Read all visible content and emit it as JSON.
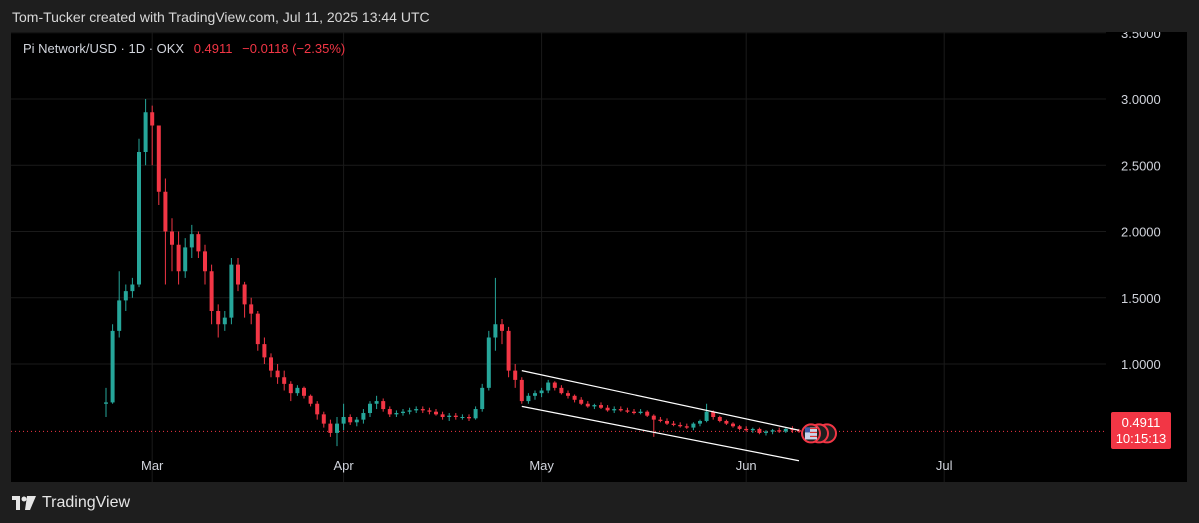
{
  "header": {
    "attribution": "Tom-Tucker created with TradingView.com, Jul 11, 2025 13:44 UTC"
  },
  "legend": {
    "symbol": "Pi Network/USD · 1D · OKX",
    "last_price": "0.4911",
    "change": "−0.0118 (−2.35%)"
  },
  "price_tag": {
    "price": "0.4911",
    "countdown": "10:15:13"
  },
  "footer": {
    "brand": "TradingView"
  },
  "colors": {
    "up": "#26a69a",
    "down": "#f23645",
    "background": "#000000",
    "grid": "#1a1a1a",
    "trendline": "#ffffff"
  },
  "chart_data": {
    "type": "candlestick",
    "symbol": "Pi Network/USD",
    "interval": "1D",
    "exchange": "OKX",
    "y_ticks": [
      3.5,
      3.0,
      2.5,
      2.0,
      1.5,
      1.0
    ],
    "y_tick_labels": [
      "3.5000",
      "3.0000",
      "2.5000",
      "2.0000",
      "1.5000",
      "1.0000"
    ],
    "ylim": [
      0.1,
      3.5
    ],
    "x_tick_labels": [
      {
        "label": "Mar",
        "day": 7
      },
      {
        "label": "Apr",
        "day": 36
      },
      {
        "label": "May",
        "day": 66
      },
      {
        "label": "Jun",
        "day": 97
      },
      {
        "label": "Jul",
        "day": 127
      }
    ],
    "last_value": 0.4911,
    "candles": [
      [
        0,
        0.7,
        0.82,
        0.6,
        0.71
      ],
      [
        1,
        0.71,
        1.3,
        0.7,
        1.25
      ],
      [
        2,
        1.25,
        1.7,
        1.2,
        1.48
      ],
      [
        3,
        1.48,
        1.6,
        1.4,
        1.55
      ],
      [
        4,
        1.55,
        1.65,
        1.5,
        1.6
      ],
      [
        5,
        1.6,
        2.7,
        1.58,
        2.6
      ],
      [
        6,
        2.6,
        3.0,
        2.5,
        2.9
      ],
      [
        7,
        2.9,
        2.95,
        2.5,
        2.8
      ],
      [
        8,
        2.8,
        2.8,
        2.2,
        2.3
      ],
      [
        9,
        2.3,
        2.4,
        1.6,
        2.0
      ],
      [
        10,
        2.0,
        2.1,
        1.7,
        1.9
      ],
      [
        11,
        1.9,
        2.0,
        1.6,
        1.7
      ],
      [
        12,
        1.7,
        1.95,
        1.65,
        1.88
      ],
      [
        13,
        1.88,
        2.05,
        1.8,
        1.98
      ],
      [
        14,
        1.98,
        2.0,
        1.8,
        1.85
      ],
      [
        15,
        1.85,
        1.9,
        1.6,
        1.7
      ],
      [
        16,
        1.7,
        1.75,
        1.3,
        1.4
      ],
      [
        17,
        1.4,
        1.45,
        1.2,
        1.3
      ],
      [
        18,
        1.3,
        1.4,
        1.25,
        1.35
      ],
      [
        19,
        1.35,
        1.8,
        1.3,
        1.75
      ],
      [
        20,
        1.75,
        1.8,
        1.55,
        1.6
      ],
      [
        21,
        1.6,
        1.62,
        1.35,
        1.45
      ],
      [
        22,
        1.45,
        1.5,
        1.3,
        1.38
      ],
      [
        23,
        1.38,
        1.4,
        1.1,
        1.15
      ],
      [
        24,
        1.15,
        1.2,
        1.0,
        1.05
      ],
      [
        25,
        1.05,
        1.08,
        0.9,
        0.95
      ],
      [
        26,
        0.95,
        1.0,
        0.85,
        0.9
      ],
      [
        27,
        0.9,
        0.95,
        0.8,
        0.85
      ],
      [
        28,
        0.85,
        0.87,
        0.72,
        0.78
      ],
      [
        29,
        0.78,
        0.84,
        0.76,
        0.82
      ],
      [
        30,
        0.82,
        0.83,
        0.74,
        0.76
      ],
      [
        31,
        0.76,
        0.77,
        0.68,
        0.7
      ],
      [
        32,
        0.7,
        0.72,
        0.58,
        0.62
      ],
      [
        33,
        0.62,
        0.64,
        0.52,
        0.55
      ],
      [
        34,
        0.55,
        0.58,
        0.45,
        0.48
      ],
      [
        35,
        0.48,
        0.6,
        0.38,
        0.55
      ],
      [
        36,
        0.55,
        0.7,
        0.5,
        0.6
      ],
      [
        37,
        0.6,
        0.62,
        0.54,
        0.56
      ],
      [
        38,
        0.56,
        0.6,
        0.53,
        0.58
      ],
      [
        39,
        0.58,
        0.66,
        0.55,
        0.63
      ],
      [
        40,
        0.63,
        0.72,
        0.6,
        0.7
      ],
      [
        41,
        0.7,
        0.76,
        0.66,
        0.72
      ],
      [
        42,
        0.72,
        0.74,
        0.64,
        0.66
      ],
      [
        43,
        0.66,
        0.68,
        0.6,
        0.62
      ],
      [
        44,
        0.62,
        0.65,
        0.6,
        0.63
      ],
      [
        45,
        0.63,
        0.66,
        0.61,
        0.64
      ],
      [
        46,
        0.64,
        0.67,
        0.62,
        0.65
      ],
      [
        47,
        0.65,
        0.68,
        0.63,
        0.66
      ],
      [
        48,
        0.66,
        0.68,
        0.63,
        0.65
      ],
      [
        49,
        0.65,
        0.67,
        0.62,
        0.64
      ],
      [
        50,
        0.64,
        0.66,
        0.61,
        0.62
      ],
      [
        51,
        0.62,
        0.64,
        0.58,
        0.6
      ],
      [
        52,
        0.6,
        0.63,
        0.57,
        0.61
      ],
      [
        53,
        0.61,
        0.63,
        0.58,
        0.6
      ],
      [
        54,
        0.6,
        0.62,
        0.58,
        0.6
      ],
      [
        55,
        0.6,
        0.62,
        0.57,
        0.59
      ],
      [
        56,
        0.59,
        0.68,
        0.58,
        0.66
      ],
      [
        57,
        0.66,
        0.85,
        0.64,
        0.82
      ],
      [
        58,
        0.82,
        1.25,
        0.8,
        1.2
      ],
      [
        59,
        1.2,
        1.65,
        1.1,
        1.3
      ],
      [
        60,
        1.3,
        1.34,
        1.15,
        1.25
      ],
      [
        61,
        1.25,
        1.28,
        0.9,
        0.95
      ],
      [
        62,
        0.95,
        1.0,
        0.82,
        0.88
      ],
      [
        63,
        0.88,
        0.9,
        0.7,
        0.72
      ],
      [
        64,
        0.72,
        0.78,
        0.7,
        0.76
      ],
      [
        65,
        0.76,
        0.8,
        0.73,
        0.78
      ],
      [
        66,
        0.78,
        0.82,
        0.75,
        0.8
      ],
      [
        67,
        0.8,
        0.88,
        0.78,
        0.86
      ],
      [
        68,
        0.86,
        0.87,
        0.8,
        0.82
      ],
      [
        69,
        0.82,
        0.84,
        0.77,
        0.78
      ],
      [
        70,
        0.78,
        0.8,
        0.74,
        0.76
      ],
      [
        71,
        0.76,
        0.77,
        0.71,
        0.73
      ],
      [
        72,
        0.73,
        0.75,
        0.69,
        0.7
      ],
      [
        73,
        0.7,
        0.72,
        0.67,
        0.68
      ],
      [
        74,
        0.68,
        0.7,
        0.66,
        0.69
      ],
      [
        75,
        0.69,
        0.71,
        0.66,
        0.67
      ],
      [
        76,
        0.67,
        0.69,
        0.64,
        0.65
      ],
      [
        77,
        0.65,
        0.68,
        0.63,
        0.66
      ],
      [
        78,
        0.66,
        0.68,
        0.64,
        0.65
      ],
      [
        79,
        0.65,
        0.67,
        0.63,
        0.64
      ],
      [
        80,
        0.64,
        0.66,
        0.62,
        0.63
      ],
      [
        81,
        0.63,
        0.66,
        0.62,
        0.64
      ],
      [
        82,
        0.64,
        0.65,
        0.6,
        0.61
      ],
      [
        83,
        0.61,
        0.62,
        0.45,
        0.58
      ],
      [
        84,
        0.58,
        0.6,
        0.56,
        0.57
      ],
      [
        85,
        0.57,
        0.59,
        0.54,
        0.55
      ],
      [
        86,
        0.55,
        0.57,
        0.53,
        0.54
      ],
      [
        87,
        0.54,
        0.56,
        0.52,
        0.53
      ],
      [
        88,
        0.53,
        0.55,
        0.51,
        0.52
      ],
      [
        89,
        0.52,
        0.56,
        0.5,
        0.55
      ],
      [
        90,
        0.55,
        0.58,
        0.53,
        0.57
      ],
      [
        91,
        0.57,
        0.7,
        0.56,
        0.64
      ],
      [
        92,
        0.64,
        0.65,
        0.58,
        0.6
      ],
      [
        93,
        0.6,
        0.61,
        0.56,
        0.57
      ],
      [
        94,
        0.57,
        0.58,
        0.54,
        0.55
      ],
      [
        95,
        0.55,
        0.56,
        0.52,
        0.53
      ],
      [
        96,
        0.53,
        0.54,
        0.5,
        0.51
      ],
      [
        97,
        0.51,
        0.53,
        0.49,
        0.5
      ],
      [
        98,
        0.5,
        0.52,
        0.48,
        0.51
      ],
      [
        99,
        0.51,
        0.52,
        0.47,
        0.48
      ],
      [
        100,
        0.48,
        0.5,
        0.46,
        0.49
      ],
      [
        101,
        0.49,
        0.51,
        0.47,
        0.5
      ],
      [
        102,
        0.5,
        0.52,
        0.48,
        0.49
      ],
      [
        103,
        0.49,
        0.52,
        0.48,
        0.51
      ],
      [
        104,
        0.51,
        0.53,
        0.48,
        0.5
      ],
      [
        105,
        0.5,
        0.51,
        0.48,
        0.49
      ]
    ],
    "trendlines": [
      {
        "name": "upper",
        "from": [
          63,
          0.95
        ],
        "to": [
          105,
          0.5
        ]
      },
      {
        "name": "lower",
        "from": [
          63,
          0.68
        ],
        "to": [
          105,
          0.27
        ]
      }
    ]
  }
}
